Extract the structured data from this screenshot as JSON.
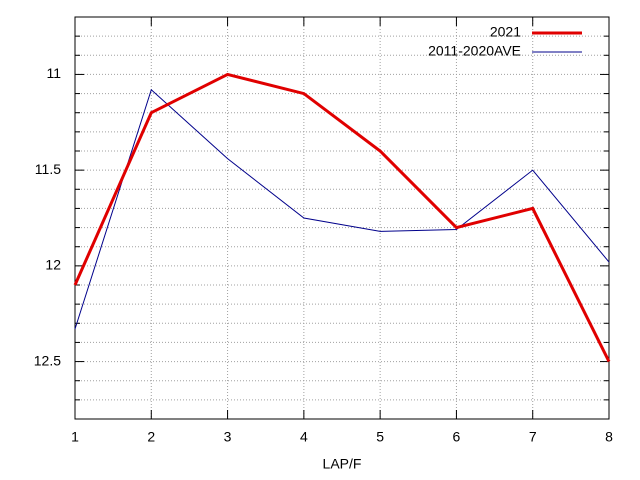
{
  "chart_data": {
    "type": "line",
    "x_label": "LAP/F",
    "x": [
      1,
      2,
      3,
      4,
      5,
      6,
      7,
      8
    ],
    "series": [
      {
        "name": "2021",
        "color": "#e00000",
        "width": 3,
        "values": [
          12.1,
          11.2,
          11.0,
          11.1,
          11.4,
          11.8,
          11.7,
          12.5
        ]
      },
      {
        "name": "2011-2020AVE",
        "color": "#00008b",
        "width": 1,
        "values": [
          12.33,
          11.08,
          11.44,
          11.75,
          11.82,
          11.81,
          11.5,
          11.98
        ]
      }
    ],
    "xlim": [
      1,
      8
    ],
    "xticks": [
      1,
      2,
      3,
      4,
      5,
      6,
      7,
      8
    ],
    "ylim": [
      12.8,
      10.7
    ],
    "yticks": [
      11,
      11.5,
      12,
      12.5
    ],
    "yminorticks": [
      10.8,
      10.9,
      11.1,
      11.2,
      11.3,
      11.4,
      11.6,
      11.7,
      11.8,
      11.9,
      12.1,
      12.2,
      12.3,
      12.4,
      12.6,
      12.7
    ],
    "grid": true,
    "legend": "top-right"
  }
}
